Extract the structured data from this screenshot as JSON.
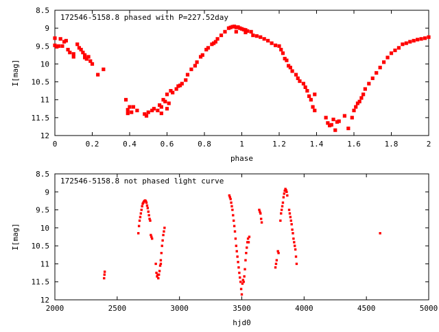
{
  "chart_data": [
    {
      "type": "scatter",
      "title": "172546-5158.8 phased with P=227.52day",
      "xlabel": "phase",
      "ylabel": "I[mag]",
      "xlim": [
        0,
        2
      ],
      "ylim": [
        8.5,
        12
      ],
      "y_inverted": true,
      "xticks": [
        "0",
        "0.2",
        "0.4",
        "0.6",
        "0.8",
        "1",
        "1.2",
        "1.4",
        "1.6",
        "1.8",
        "2"
      ],
      "yticks": [
        "8.5",
        "9",
        "9.5",
        "10",
        "10.5",
        "11",
        "11.5",
        "12"
      ],
      "marker_color": "#ff0000",
      "grid": false,
      "series": [
        {
          "points": [
            [
              0.0,
              9.28
            ],
            [
              0.0,
              9.48
            ],
            [
              0.01,
              9.52
            ],
            [
              0.02,
              9.5
            ],
            [
              0.03,
              9.3
            ],
            [
              0.04,
              9.5
            ],
            [
              0.05,
              9.38
            ],
            [
              0.06,
              9.35
            ],
            [
              0.07,
              9.6
            ],
            [
              0.08,
              9.68
            ],
            [
              0.1,
              9.72
            ],
            [
              0.1,
              9.8
            ],
            [
              0.12,
              9.45
            ],
            [
              0.13,
              9.55
            ],
            [
              0.14,
              9.6
            ],
            [
              0.15,
              9.68
            ],
            [
              0.16,
              9.75
            ],
            [
              0.16,
              9.82
            ],
            [
              0.17,
              9.86
            ],
            [
              0.18,
              9.8
            ],
            [
              0.19,
              9.92
            ],
            [
              0.2,
              10.0
            ],
            [
              0.23,
              10.3
            ],
            [
              0.26,
              10.15
            ],
            [
              0.38,
              11.0
            ],
            [
              0.39,
              11.28
            ],
            [
              0.39,
              11.38
            ],
            [
              0.4,
              11.2
            ],
            [
              0.41,
              11.35
            ],
            [
              0.42,
              11.2
            ],
            [
              0.44,
              11.3
            ],
            [
              0.48,
              11.4
            ],
            [
              0.49,
              11.45
            ],
            [
              0.5,
              11.35
            ],
            [
              0.52,
              11.3
            ],
            [
              0.53,
              11.25
            ],
            [
              0.55,
              11.3
            ],
            [
              0.56,
              11.15
            ],
            [
              0.57,
              11.38
            ],
            [
              0.57,
              11.2
            ],
            [
              0.58,
              11.0
            ],
            [
              0.59,
              11.05
            ],
            [
              0.6,
              10.85
            ],
            [
              0.6,
              11.25
            ],
            [
              0.61,
              11.1
            ],
            [
              0.62,
              10.75
            ],
            [
              0.63,
              10.8
            ],
            [
              0.65,
              10.7
            ],
            [
              0.66,
              10.62
            ],
            [
              0.67,
              10.6
            ],
            [
              0.68,
              10.55
            ],
            [
              0.7,
              10.45
            ],
            [
              0.71,
              10.3
            ],
            [
              0.73,
              10.15
            ],
            [
              0.75,
              10.05
            ],
            [
              0.76,
              9.95
            ],
            [
              0.78,
              9.8
            ],
            [
              0.79,
              9.75
            ],
            [
              0.81,
              9.6
            ],
            [
              0.82,
              9.55
            ],
            [
              0.84,
              9.45
            ],
            [
              0.85,
              9.42
            ],
            [
              0.86,
              9.38
            ],
            [
              0.87,
              9.3
            ],
            [
              0.89,
              9.2
            ],
            [
              0.91,
              9.1
            ],
            [
              0.93,
              9.0
            ],
            [
              0.94,
              8.98
            ],
            [
              0.95,
              8.96
            ],
            [
              0.96,
              8.95
            ],
            [
              0.97,
              8.98
            ],
            [
              0.97,
              9.1
            ],
            [
              0.98,
              8.97
            ],
            [
              0.99,
              9.0
            ],
            [
              1.0,
              9.02
            ],
            [
              1.01,
              9.04
            ],
            [
              1.02,
              9.05
            ],
            [
              1.02,
              9.12
            ],
            [
              1.03,
              9.08
            ],
            [
              1.05,
              9.1
            ],
            [
              1.06,
              9.2
            ],
            [
              1.08,
              9.22
            ],
            [
              1.1,
              9.25
            ],
            [
              1.12,
              9.3
            ],
            [
              1.14,
              9.35
            ],
            [
              1.16,
              9.42
            ],
            [
              1.18,
              9.48
            ],
            [
              1.2,
              9.5
            ],
            [
              1.21,
              9.6
            ],
            [
              1.22,
              9.7
            ],
            [
              1.23,
              9.85
            ],
            [
              1.24,
              9.9
            ],
            [
              1.25,
              10.05
            ],
            [
              1.26,
              10.1
            ],
            [
              1.27,
              10.2
            ],
            [
              1.29,
              10.3
            ],
            [
              1.3,
              10.4
            ],
            [
              1.31,
              10.48
            ],
            [
              1.33,
              10.55
            ],
            [
              1.34,
              10.65
            ],
            [
              1.35,
              10.75
            ],
            [
              1.36,
              10.9
            ],
            [
              1.37,
              11.0
            ],
            [
              1.38,
              11.2
            ],
            [
              1.39,
              11.3
            ],
            [
              1.39,
              10.85
            ],
            [
              1.45,
              11.5
            ],
            [
              1.46,
              11.65
            ],
            [
              1.47,
              11.72
            ],
            [
              1.48,
              11.7
            ],
            [
              1.49,
              11.55
            ],
            [
              1.5,
              11.85
            ],
            [
              1.51,
              11.62
            ],
            [
              1.52,
              11.6
            ],
            [
              1.55,
              11.45
            ],
            [
              1.57,
              11.8
            ],
            [
              1.59,
              11.5
            ],
            [
              1.6,
              11.3
            ],
            [
              1.61,
              11.2
            ],
            [
              1.62,
              11.1
            ],
            [
              1.63,
              11.05
            ],
            [
              1.64,
              10.95
            ],
            [
              1.65,
              10.85
            ],
            [
              1.66,
              10.7
            ],
            [
              1.68,
              10.55
            ],
            [
              1.7,
              10.4
            ],
            [
              1.72,
              10.25
            ],
            [
              1.74,
              10.1
            ],
            [
              1.76,
              9.95
            ],
            [
              1.78,
              9.82
            ],
            [
              1.8,
              9.7
            ],
            [
              1.82,
              9.62
            ],
            [
              1.84,
              9.55
            ],
            [
              1.86,
              9.45
            ],
            [
              1.88,
              9.42
            ],
            [
              1.9,
              9.38
            ],
            [
              1.92,
              9.35
            ],
            [
              1.94,
              9.32
            ],
            [
              1.96,
              9.3
            ],
            [
              1.98,
              9.28
            ],
            [
              2.0,
              9.25
            ]
          ]
        }
      ]
    },
    {
      "type": "scatter",
      "title": "172546-5158.8 not phased light curve",
      "xlabel": "hjd0",
      "ylabel": "I[mag]",
      "xlim": [
        2000,
        5000
      ],
      "ylim": [
        8.5,
        12
      ],
      "y_inverted": true,
      "xticks": [
        "2000",
        "2500",
        "3000",
        "3500",
        "4000",
        "4500",
        "5000"
      ],
      "yticks": [
        "8.5",
        "9",
        "9.5",
        "10",
        "10.5",
        "11",
        "11.5",
        "12"
      ],
      "marker_color": "#ff0000",
      "grid": false,
      "series": [
        {
          "points": [
            [
              2395,
              11.4
            ],
            [
              2398,
              11.3
            ],
            [
              2400,
              11.22
            ],
            [
              2670,
              10.15
            ],
            [
              2675,
              9.95
            ],
            [
              2680,
              9.8
            ],
            [
              2685,
              9.7
            ],
            [
              2690,
              9.6
            ],
            [
              2695,
              9.5
            ],
            [
              2700,
              9.4
            ],
            [
              2705,
              9.33
            ],
            [
              2710,
              9.3
            ],
            [
              2715,
              9.27
            ],
            [
              2720,
              9.25
            ],
            [
              2725,
              9.24
            ],
            [
              2730,
              9.26
            ],
            [
              2735,
              9.3
            ],
            [
              2740,
              9.38
            ],
            [
              2745,
              9.45
            ],
            [
              2750,
              9.55
            ],
            [
              2755,
              9.65
            ],
            [
              2760,
              9.75
            ],
            [
              2765,
              9.8
            ],
            [
              2770,
              10.2
            ],
            [
              2775,
              10.25
            ],
            [
              2780,
              10.3
            ],
            [
              2810,
              11.0
            ],
            [
              2815,
              11.25
            ],
            [
              2820,
              11.35
            ],
            [
              2825,
              11.3
            ],
            [
              2830,
              11.4
            ],
            [
              2835,
              11.3
            ],
            [
              2840,
              11.2
            ],
            [
              2845,
              11.05
            ],
            [
              2850,
              11.0
            ],
            [
              2855,
              10.7
            ],
            [
              2860,
              10.5
            ],
            [
              2865,
              10.35
            ],
            [
              2870,
              10.2
            ],
            [
              2875,
              10.1
            ],
            [
              2880,
              10.0
            ],
            [
              2850,
              10.9
            ],
            [
              3400,
              9.1
            ],
            [
              3405,
              9.15
            ],
            [
              3410,
              9.2
            ],
            [
              3415,
              9.3
            ],
            [
              3420,
              9.4
            ],
            [
              3425,
              9.5
            ],
            [
              3430,
              9.65
            ],
            [
              3435,
              9.8
            ],
            [
              3440,
              9.95
            ],
            [
              3445,
              10.1
            ],
            [
              3450,
              10.3
            ],
            [
              3455,
              10.5
            ],
            [
              3460,
              10.65
            ],
            [
              3465,
              10.8
            ],
            [
              3470,
              10.95
            ],
            [
              3475,
              11.1
            ],
            [
              3480,
              11.25
            ],
            [
              3485,
              11.38
            ],
            [
              3490,
              11.5
            ],
            [
              3495,
              11.7
            ],
            [
              3500,
              11.85
            ],
            [
              3505,
              11.55
            ],
            [
              3510,
              11.45
            ],
            [
              3515,
              11.5
            ],
            [
              3520,
              11.35
            ],
            [
              3525,
              11.15
            ],
            [
              3530,
              10.9
            ],
            [
              3535,
              10.7
            ],
            [
              3540,
              10.55
            ],
            [
              3545,
              10.4
            ],
            [
              3550,
              10.3
            ],
            [
              3560,
              10.25
            ],
            [
              3555,
              10.4
            ],
            [
              3640,
              9.5
            ],
            [
              3645,
              9.55
            ],
            [
              3650,
              9.6
            ],
            [
              3655,
              9.75
            ],
            [
              3660,
              9.85
            ],
            [
              3770,
              11.1
            ],
            [
              3775,
              11.0
            ],
            [
              3780,
              10.9
            ],
            [
              3790,
              10.65
            ],
            [
              3795,
              10.7
            ],
            [
              3810,
              9.8
            ],
            [
              3815,
              9.6
            ],
            [
              3820,
              9.5
            ],
            [
              3825,
              9.4
            ],
            [
              3830,
              9.3
            ],
            [
              3835,
              9.15
            ],
            [
              3840,
              9.05
            ],
            [
              3845,
              8.97
            ],
            [
              3850,
              8.92
            ],
            [
              3855,
              8.95
            ],
            [
              3860,
              9.0
            ],
            [
              3865,
              9.1
            ],
            [
              3880,
              9.5
            ],
            [
              3885,
              9.6
            ],
            [
              3890,
              9.7
            ],
            [
              3895,
              9.8
            ],
            [
              3900,
              9.9
            ],
            [
              3905,
              10.05
            ],
            [
              3910,
              10.15
            ],
            [
              3915,
              10.3
            ],
            [
              3920,
              10.4
            ],
            [
              3925,
              10.5
            ],
            [
              3930,
              10.6
            ],
            [
              3940,
              11.0
            ],
            [
              3935,
              10.8
            ],
            [
              4610,
              10.15
            ]
          ]
        }
      ]
    }
  ]
}
